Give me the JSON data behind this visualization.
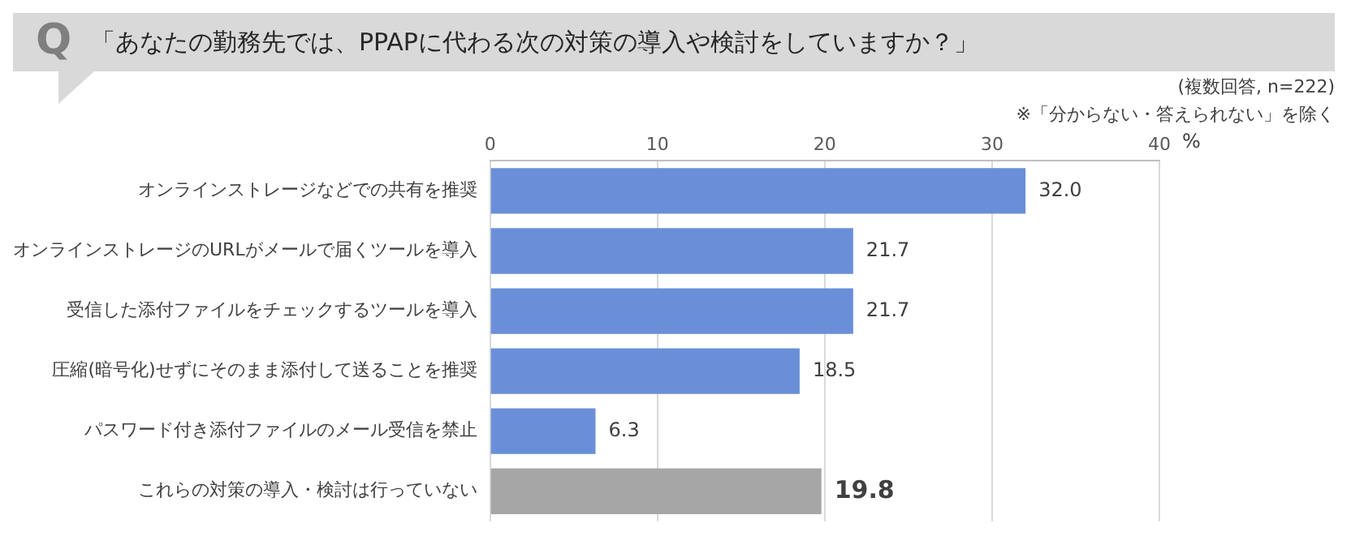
{
  "chart_data": {
    "type": "bar",
    "orientation": "horizontal",
    "title": "「あなたの勤務先では、PPAPに代わる次の対策の導入や検討をしていますか？」",
    "subtitle": "(複数回答, n=222)",
    "annotations": [
      "Q",
      "※「分からない・答えられない」を除く"
    ],
    "xlabel": "%",
    "categories": [
      "オンラインストレージなどでの共有を推奨",
      "オンラインストレージのURLがメールで届くツールを導入",
      "受信した添付ファイルをチェックするツールを導入",
      "圧縮(暗号化)せずにそのまま添付して送ることを推奨",
      "パスワード付き添付ファイルのメール受信を禁止",
      "これらの対策の導入・検討は行っていない"
    ],
    "values": [
      32.0,
      21.7,
      21.7,
      18.5,
      6.3,
      19.8
    ],
    "value_labels": [
      "32.0",
      "21.7",
      "21.7",
      "18.5",
      "6.3",
      "19.8"
    ],
    "colors": [
      "#6a8fd8",
      "#6a8fd8",
      "#6a8fd8",
      "#6a8fd8",
      "#6a8fd8",
      "#a6a6a6"
    ],
    "xlim": [
      0,
      40
    ],
    "xticks": [
      0,
      10,
      20,
      30,
      40
    ],
    "grid": "x",
    "legend": false
  }
}
